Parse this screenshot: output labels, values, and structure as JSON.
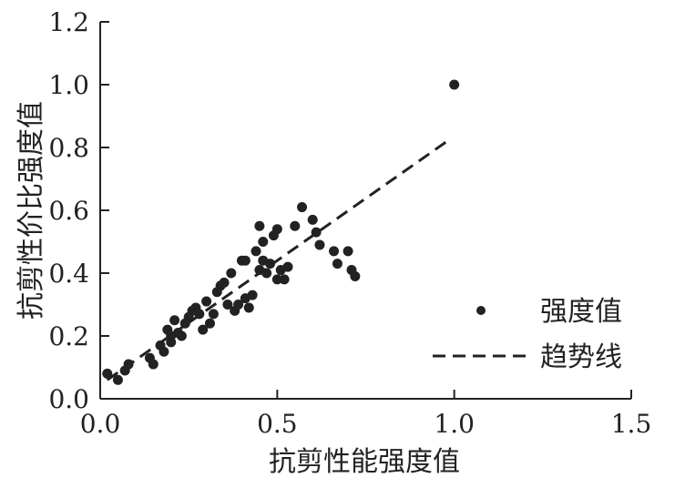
{
  "chart_data": {
    "type": "scatter",
    "xlabel": "抗剪性能强度值",
    "ylabel": "抗剪性价比强度值",
    "xlim": [
      0.0,
      1.5
    ],
    "ylim": [
      0.0,
      1.2
    ],
    "x_ticks": [
      "0.0",
      "0.5",
      "1.0",
      "1.5"
    ],
    "y_ticks": [
      "0.0",
      "0.2",
      "0.4",
      "0.6",
      "0.8",
      "1.0",
      "1.2"
    ],
    "grid": false,
    "legend_position": "right",
    "series": [
      {
        "name": "强度值",
        "type": "scatter",
        "color": "#222222",
        "points": [
          [
            0.02,
            0.08
          ],
          [
            0.05,
            0.06
          ],
          [
            0.07,
            0.09
          ],
          [
            0.08,
            0.11
          ],
          [
            0.14,
            0.13
          ],
          [
            0.15,
            0.11
          ],
          [
            0.17,
            0.17
          ],
          [
            0.18,
            0.15
          ],
          [
            0.19,
            0.22
          ],
          [
            0.2,
            0.18
          ],
          [
            0.2,
            0.2
          ],
          [
            0.21,
            0.25
          ],
          [
            0.22,
            0.21
          ],
          [
            0.23,
            0.2
          ],
          [
            0.24,
            0.24
          ],
          [
            0.25,
            0.26
          ],
          [
            0.26,
            0.28
          ],
          [
            0.27,
            0.29
          ],
          [
            0.28,
            0.27
          ],
          [
            0.29,
            0.22
          ],
          [
            0.3,
            0.31
          ],
          [
            0.31,
            0.24
          ],
          [
            0.32,
            0.27
          ],
          [
            0.33,
            0.34
          ],
          [
            0.34,
            0.36
          ],
          [
            0.35,
            0.37
          ],
          [
            0.36,
            0.3
          ],
          [
            0.37,
            0.4
          ],
          [
            0.38,
            0.28
          ],
          [
            0.39,
            0.3
          ],
          [
            0.4,
            0.44
          ],
          [
            0.41,
            0.32
          ],
          [
            0.41,
            0.44
          ],
          [
            0.42,
            0.29
          ],
          [
            0.43,
            0.33
          ],
          [
            0.44,
            0.47
          ],
          [
            0.45,
            0.41
          ],
          [
            0.45,
            0.55
          ],
          [
            0.46,
            0.44
          ],
          [
            0.46,
            0.5
          ],
          [
            0.47,
            0.4
          ],
          [
            0.48,
            0.43
          ],
          [
            0.49,
            0.52
          ],
          [
            0.5,
            0.38
          ],
          [
            0.5,
            0.54
          ],
          [
            0.51,
            0.41
          ],
          [
            0.52,
            0.38
          ],
          [
            0.53,
            0.42
          ],
          [
            0.55,
            0.55
          ],
          [
            0.57,
            0.61
          ],
          [
            0.6,
            0.57
          ],
          [
            0.61,
            0.53
          ],
          [
            0.62,
            0.49
          ],
          [
            0.66,
            0.47
          ],
          [
            0.67,
            0.43
          ],
          [
            0.7,
            0.47
          ],
          [
            0.71,
            0.41
          ],
          [
            0.72,
            0.39
          ],
          [
            1.0,
            1.0
          ]
        ]
      },
      {
        "name": "趋势线",
        "type": "line",
        "style": "dashed",
        "color": "#222222",
        "points": [
          [
            0.02,
            0.06
          ],
          [
            0.98,
            0.82
          ]
        ]
      }
    ]
  }
}
